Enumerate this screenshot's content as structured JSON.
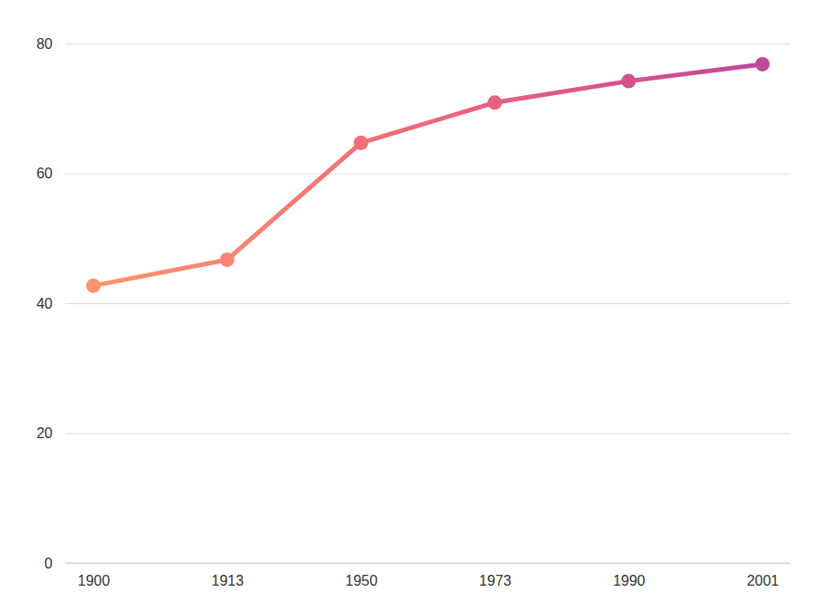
{
  "chart_data": {
    "type": "line",
    "categories": [
      "1900",
      "1913",
      "1950",
      "1973",
      "1990",
      "2001"
    ],
    "values": [
      42.7,
      46.7,
      64.7,
      70.9,
      74.2,
      76.8
    ],
    "colors": [
      "#ff9470",
      "#fa8573",
      "#f27077",
      "#e8607f",
      "#d4508d",
      "#bf4a9b"
    ],
    "marker": "circle",
    "ylim": [
      0,
      80
    ],
    "yticks": [
      0,
      20,
      40,
      60,
      80
    ],
    "grid": true
  }
}
